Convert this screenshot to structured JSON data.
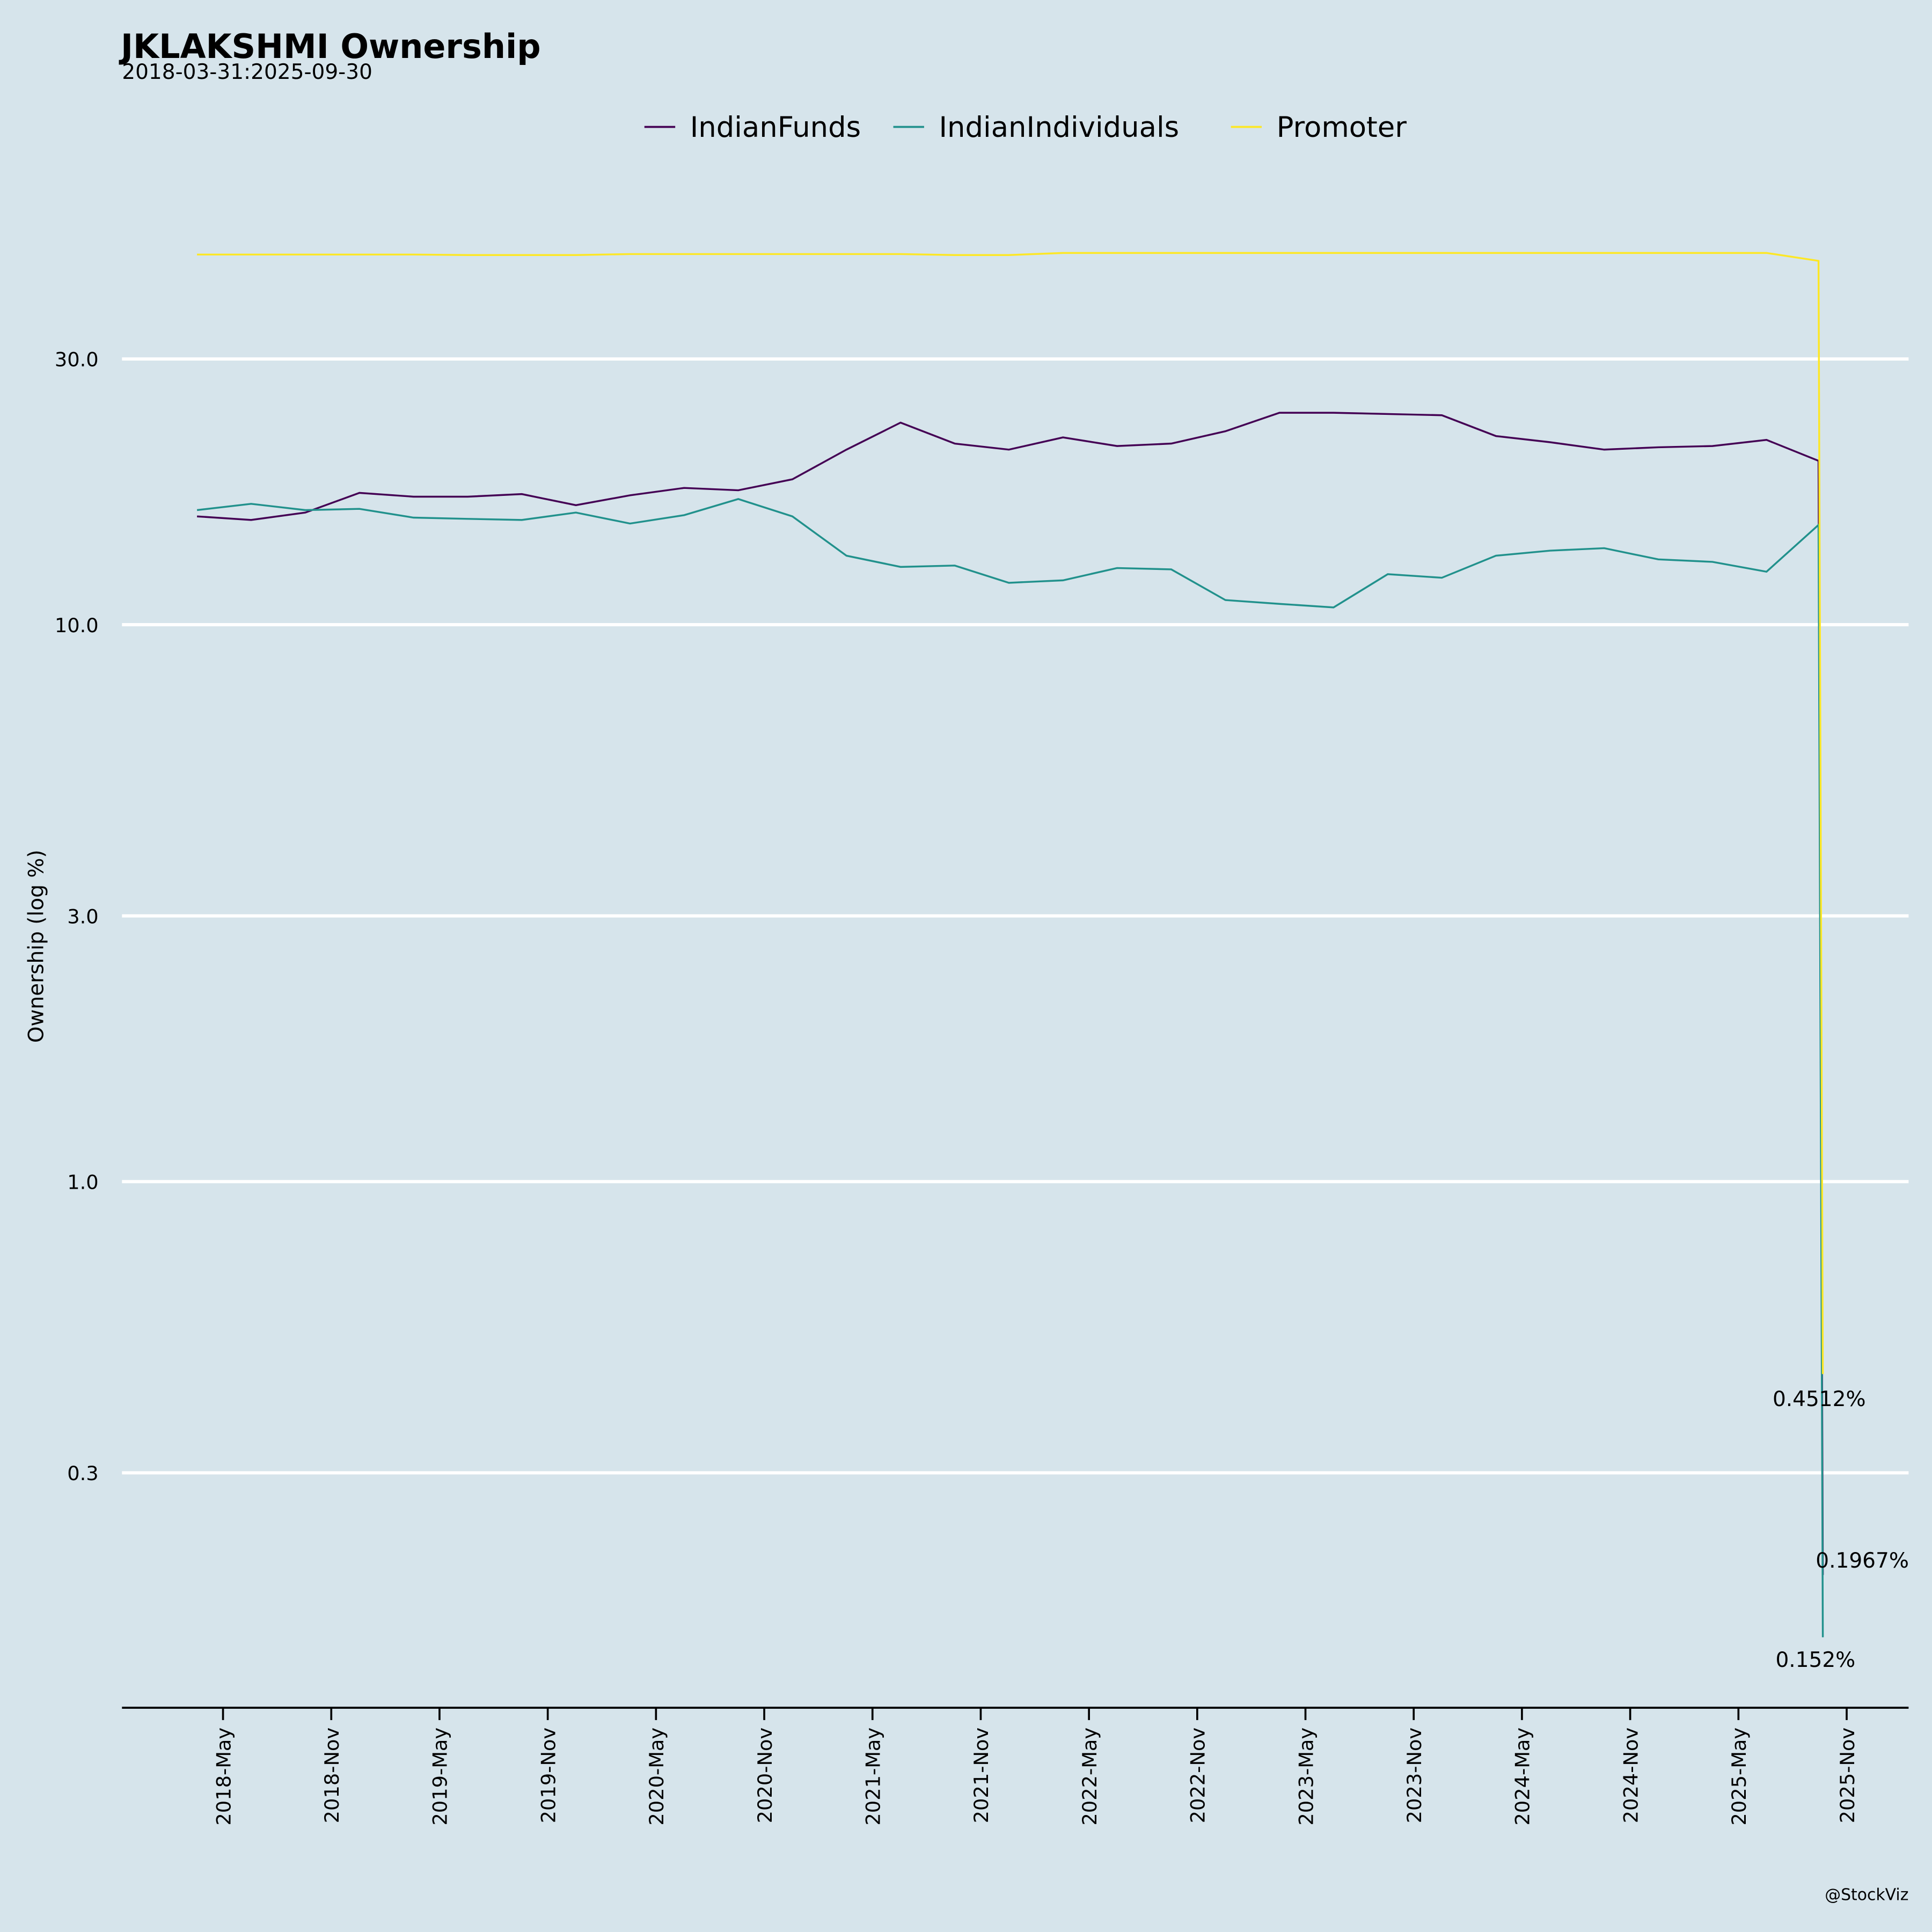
{
  "chart_data": {
    "type": "line",
    "title": "JKLAKSHMI Ownership",
    "subtitle": "2018-03-31:2025-09-30",
    "xlabel": "",
    "ylabel": "Ownership (log %)",
    "yscale": "log",
    "ylim": [
      0.12,
      70
    ],
    "xlim": [
      2017.9,
      2026.0
    ],
    "grid": "horizontal",
    "legend_position": "top-center",
    "yticks": [
      30.0,
      10.0,
      3.0,
      1.0,
      0.3
    ],
    "ytick_labels": [
      "30.0",
      "10.0",
      "3.0",
      "1.0",
      "0.3"
    ],
    "xticks": [
      2018.37,
      2018.87,
      2019.37,
      2019.87,
      2020.37,
      2020.87,
      2021.37,
      2021.87,
      2022.37,
      2022.87,
      2023.37,
      2023.87,
      2024.37,
      2024.87,
      2025.37,
      2025.87
    ],
    "xtick_labels": [
      "2018-May",
      "2018-Nov",
      "2019-May",
      "2019-Nov",
      "2020-May",
      "2020-Nov",
      "2021-May",
      "2021-Nov",
      "2022-May",
      "2022-Nov",
      "2023-May",
      "2023-Nov",
      "2024-May",
      "2024-Nov",
      "2025-May",
      "2025-Nov"
    ],
    "x": [
      2018.25,
      2018.5,
      2018.75,
      2019.0,
      2019.25,
      2019.5,
      2019.75,
      2020.0,
      2020.25,
      2020.5,
      2020.75,
      2021.0,
      2021.25,
      2021.5,
      2021.75,
      2022.0,
      2022.25,
      2022.5,
      2022.75,
      2023.0,
      2023.25,
      2023.5,
      2023.75,
      2024.0,
      2024.25,
      2024.5,
      2024.75,
      2025.0,
      2025.25,
      2025.5,
      2025.74,
      2025.76
    ],
    "series": [
      {
        "name": "IndianFunds",
        "color": "#440154",
        "values": [
          15.65,
          15.42,
          15.9,
          17.25,
          16.98,
          16.98,
          17.16,
          16.39,
          17.07,
          17.6,
          17.43,
          18.24,
          20.62,
          23.06,
          21.15,
          20.62,
          21.69,
          20.93,
          21.15,
          22.25,
          24.02,
          24.02,
          23.89,
          23.77,
          21.81,
          21.26,
          20.62,
          20.83,
          20.93,
          21.47,
          19.69,
          0.1967
        ]
      },
      {
        "name": "IndianIndividuals",
        "color": "#21918c",
        "values": [
          16.06,
          16.48,
          16.06,
          16.14,
          15.57,
          15.49,
          15.42,
          15.9,
          15.19,
          15.73,
          16.81,
          15.65,
          13.3,
          12.7,
          12.77,
          11.89,
          12.01,
          12.64,
          12.57,
          11.07,
          10.9,
          10.74,
          12.32,
          12.14,
          13.3,
          13.58,
          13.72,
          13.1,
          12.97,
          12.45,
          15.11,
          0.152
        ]
      },
      {
        "name": "Promoter",
        "color": "#fde725",
        "values": [
          46.2,
          46.2,
          46.2,
          46.2,
          46.2,
          46.1,
          46.1,
          46.1,
          46.3,
          46.3,
          46.3,
          46.3,
          46.3,
          46.3,
          46.1,
          46.1,
          46.5,
          46.5,
          46.5,
          46.5,
          46.5,
          46.5,
          46.5,
          46.5,
          46.5,
          46.5,
          46.5,
          46.5,
          46.5,
          46.5,
          45.0,
          0.4512
        ]
      }
    ],
    "annotations": [
      {
        "series": "Promoter",
        "text": "0.4512%"
      },
      {
        "series": "IndianFunds",
        "text": "0.1967%"
      },
      {
        "series": "IndianIndividuals",
        "text": "0.152%"
      }
    ],
    "credit": "@StockViz"
  }
}
